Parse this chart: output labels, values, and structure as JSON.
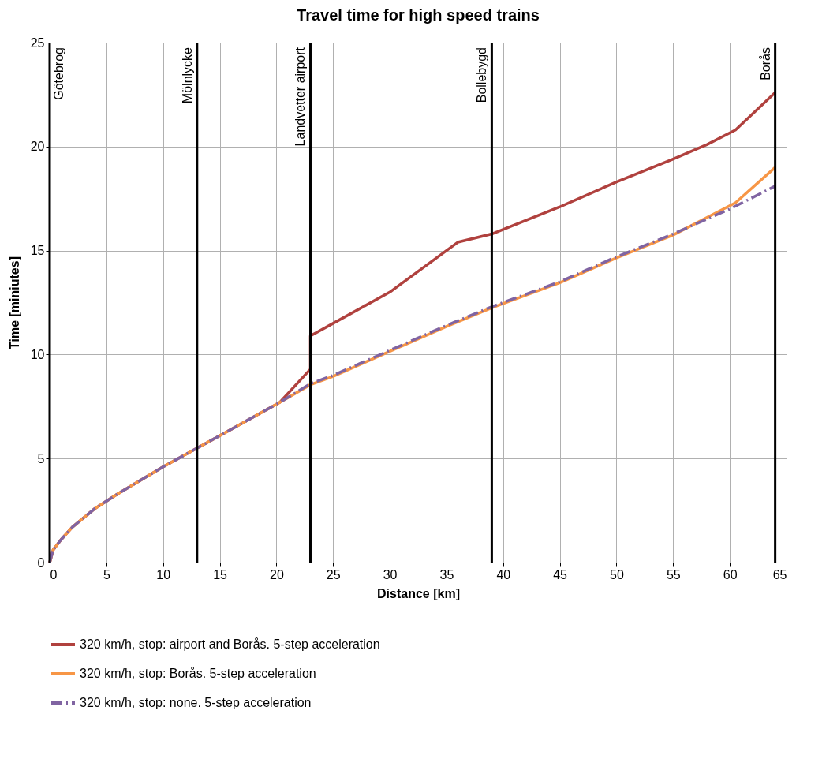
{
  "chart_data": {
    "type": "line",
    "title": "Travel time for high speed trains",
    "xlabel": "Distance [km]",
    "ylabel": "Time [miniutes]",
    "xlim": [
      0,
      65
    ],
    "xticks": [
      0,
      5,
      10,
      15,
      20,
      25,
      30,
      35,
      40,
      45,
      50,
      55,
      60,
      65
    ],
    "ylim": [
      0,
      25
    ],
    "yticks": [
      0,
      5,
      10,
      15,
      20,
      25
    ],
    "grid": true,
    "legend": "bottom",
    "marker": "none",
    "series": [
      {
        "name": "320 km/h, stop: airport and Borås. 5-step acceleration",
        "color": "#b0413e",
        "line_style": "solid",
        "x": [
          0,
          0.3,
          1,
          2,
          4,
          6,
          10,
          13,
          15,
          20.3,
          23,
          23,
          25,
          30,
          36,
          39,
          45,
          50,
          55,
          58,
          60.5,
          64
        ],
        "values": [
          0,
          0.6,
          1.1,
          1.7,
          2.6,
          3.3,
          4.6,
          5.5,
          6.1,
          7.7,
          9.3,
          10.9,
          11.5,
          13.0,
          15.4,
          15.8,
          17.1,
          18.3,
          19.4,
          20.1,
          20.8,
          22.6
        ]
      },
      {
        "name": "320 km/h, stop: Borås. 5-step acceleration",
        "color": "#f79646",
        "line_style": "solid",
        "x": [
          0,
          0.3,
          1,
          2,
          4,
          6,
          10,
          13,
          15,
          20.3,
          23,
          25,
          30,
          35,
          39,
          45,
          50,
          55,
          60.5,
          64
        ],
        "values": [
          0,
          0.6,
          1.1,
          1.7,
          2.6,
          3.3,
          4.6,
          5.5,
          6.1,
          7.7,
          8.55,
          8.95,
          10.15,
          11.35,
          12.25,
          13.45,
          14.65,
          15.75,
          17.3,
          19.0
        ]
      },
      {
        "name": "320 km/h, stop: none. 5-step acceleration",
        "color": "#8064a2",
        "line_style": "dashed",
        "x": [
          0,
          0.3,
          1,
          2,
          4,
          6,
          10,
          13,
          15,
          20.3,
          23,
          25,
          30,
          35,
          39,
          45,
          50,
          55,
          60,
          64
        ],
        "values": [
          0,
          0.6,
          1.1,
          1.7,
          2.6,
          3.3,
          4.6,
          5.5,
          6.1,
          7.7,
          8.6,
          9.0,
          10.2,
          11.4,
          12.3,
          13.5,
          14.7,
          15.8,
          17.0,
          18.1
        ]
      }
    ],
    "ref_lines": [
      {
        "axis": "x",
        "value": 0,
        "label": "Götebrog",
        "color": "#000000"
      },
      {
        "axis": "x",
        "value": 13,
        "label": "Mölnlycke",
        "color": "#000000"
      },
      {
        "axis": "x",
        "value": 23,
        "label": "Landvetter airport",
        "color": "#000000"
      },
      {
        "axis": "x",
        "value": 39,
        "label": "Bollebygd",
        "color": "#000000"
      },
      {
        "axis": "x",
        "value": 64,
        "label": "Borås",
        "color": "#000000"
      }
    ]
  }
}
